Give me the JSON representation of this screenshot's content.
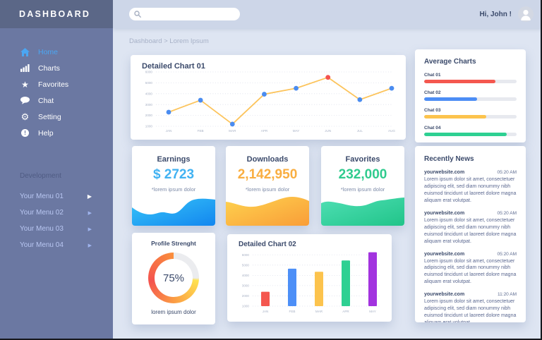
{
  "app": {
    "title": "DASHBOARD"
  },
  "topbar": {
    "search_placeholder": "",
    "greeting": "Hi, John !"
  },
  "breadcrumb": "Dashboard > Lorem Ipsum",
  "sidebar": {
    "items": [
      {
        "label": "Home",
        "icon": "home-icon",
        "active": true
      },
      {
        "label": "Charts",
        "icon": "charts-icon",
        "active": false
      },
      {
        "label": "Favorites",
        "icon": "star-icon",
        "active": false
      },
      {
        "label": "Chat",
        "icon": "chat-icon",
        "active": false
      },
      {
        "label": "Setting",
        "icon": "gear-icon",
        "active": false
      },
      {
        "label": "Help",
        "icon": "help-icon",
        "active": false
      }
    ],
    "section_label": "Development",
    "dev_items": [
      {
        "label": "Your Menu 01"
      },
      {
        "label": "Your Menu 02"
      },
      {
        "label": "Your Menu 03"
      },
      {
        "label": "Your Menu 04"
      }
    ]
  },
  "cards": {
    "average": {
      "title": "Average Charts",
      "bars": [
        {
          "label": "Chat 01",
          "pct": 77,
          "color": "#f4574f"
        },
        {
          "label": "Chat 02",
          "pct": 57,
          "color": "#4c8df5"
        },
        {
          "label": "Chat 03",
          "pct": 67,
          "color": "#fcc34d"
        },
        {
          "label": "Chat 04",
          "pct": 89,
          "color": "#2ed092"
        }
      ]
    },
    "stats": [
      {
        "title": "Earnings",
        "value": "$ 2723",
        "note": "*lorem ipsum dolor",
        "value_color": "#41b2f2",
        "wave": [
          "#38c5f8",
          "#1286ef"
        ]
      },
      {
        "title": "Downloads",
        "value": "2,142,950",
        "note": "*lorem ipsum dolor",
        "value_color": "#f9ae41",
        "wave": [
          "#fed34f",
          "#f99d38"
        ]
      },
      {
        "title": "Favorites",
        "value": "232,000",
        "note": "*lorem ipsum dolor",
        "value_color": "#2fcb8e",
        "wave": [
          "#4fdfb4",
          "#21c489"
        ]
      }
    ],
    "profile": {
      "title": "Profile Strenght",
      "value": "75%",
      "pct": 75,
      "note": "lorem ipsum dolor",
      "donut_gray": "#ebecef",
      "donut_stops": [
        "#ffe24f",
        "#fb9b44",
        "#f4534f",
        "#fa8f3c"
      ]
    },
    "news": {
      "title": "Recently News",
      "items": [
        {
          "source": "yourwebsite.com",
          "time": "05:20 AM",
          "body": "Lorem ipsum dolor sit amet, consectetuer adipiscing elit, sed diam nonummy nibh euismod tincidunt ut laoreet dolore magna aliquam erat volutpat."
        },
        {
          "source": "yourwebsite.com",
          "time": "05:20 AM",
          "body": "Lorem ipsum dolor sit amet, consectetuer adipiscing elit, sed diam nonummy nibh euismod tincidunt ut laoreet dolore magna aliquam erat volutpat."
        },
        {
          "source": "yourwebsite.com",
          "time": "05:20 AM",
          "body": "Lorem ipsum dolor sit amet, consectetuer adipiscing elit, sed diam nonummy nibh euismod tincidunt ut laoreet dolore magna aliquam erat volutpat."
        },
        {
          "source": "yourwebsite.com",
          "time": "11:20 AM",
          "body": "Lorem ipsum dolor sit amet, consectetuer adipiscing elit, sed diam nonummy nibh euismod tincidunt ut laoreet dolore magna aliquam erat volutpat."
        }
      ]
    }
  },
  "chart_data": [
    {
      "type": "line",
      "title": "Detailed Chart 01",
      "categories": [
        "JAN",
        "FEB",
        "MAR",
        "APR",
        "MAY",
        "JUN",
        "JUL",
        "AUG"
      ],
      "values": [
        2300,
        3400,
        1200,
        3950,
        4500,
        5500,
        3450,
        4500
      ],
      "highlight_index": 5,
      "line_color": "#fcc45c",
      "point_color": "#4a8cf0",
      "highlight_color": "#f4534f",
      "yticks": [
        1000,
        2000,
        3000,
        4000,
        5000,
        6000
      ],
      "ylim": [
        1000,
        6000
      ],
      "grid": "dotted",
      "xlabel": "",
      "ylabel": ""
    },
    {
      "type": "bar",
      "title": "Detailed Chart 02",
      "categories": [
        "JAN",
        "FEB",
        "MAR",
        "APR",
        "MAY"
      ],
      "values": [
        2400,
        4650,
        4350,
        5450,
        6250
      ],
      "colors": [
        "#f4574f",
        "#4d8ff7",
        "#fcc34d",
        "#2ed092",
        "#a233df"
      ],
      "yticks": [
        1000,
        2000,
        3000,
        4000,
        5000,
        6000
      ],
      "ylim": [
        1000,
        6500
      ],
      "grid": "dotted",
      "xlabel": "",
      "ylabel": ""
    }
  ]
}
